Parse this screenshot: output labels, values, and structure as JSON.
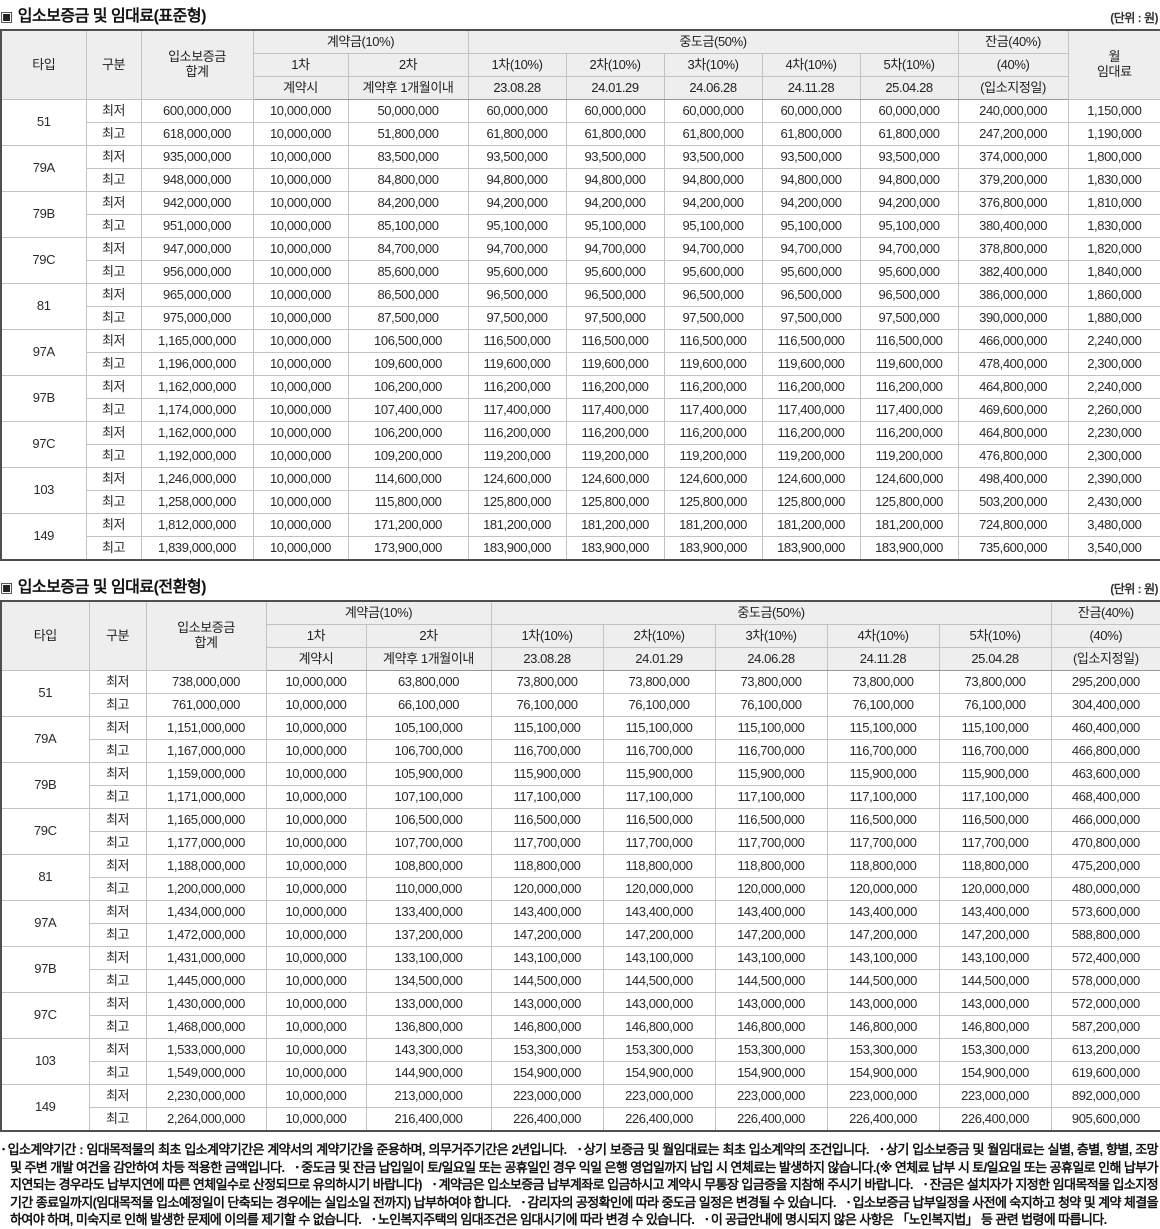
{
  "tables": [
    {
      "id": "standard",
      "bullet_icon": "▣",
      "title": "입소보증금 및 임대료(표준형)",
      "unit_label": "(단위 : 원)",
      "header": {
        "type": "타입",
        "category": "구분",
        "deposit_total_lines": [
          "입소보증금",
          "합계"
        ],
        "contract": {
          "group": "계약금(10%)",
          "cols": [
            {
              "top": "1차",
              "bottom": "계약시"
            },
            {
              "top": "2차",
              "bottom": "계약후 1개월이내"
            }
          ]
        },
        "interim": {
          "group": "중도금(50%)",
          "cols": [
            {
              "top": "1차(10%)",
              "bottom": "23.08.28"
            },
            {
              "top": "2차(10%)",
              "bottom": "24.01.29"
            },
            {
              "top": "3차(10%)",
              "bottom": "24.06.28"
            },
            {
              "top": "4차(10%)",
              "bottom": "24.11.28"
            },
            {
              "top": "5차(10%)",
              "bottom": "25.04.28"
            }
          ]
        },
        "balance_rows": [
          "잔금(40%)",
          "(40%)",
          "(입소지정일)"
        ],
        "monthly_rent_lines": [
          "월",
          "임대료"
        ]
      },
      "groups": [
        {
          "type": "51",
          "rows": [
            {
              "category": "최저",
              "deposit_total": "600,000,000",
              "contract1": "10,000,000",
              "contract2": "50,000,000",
              "interim_each": "60,000,000",
              "balance": "240,000,000",
              "monthly_rent": "1,150,000"
            },
            {
              "category": "최고",
              "deposit_total": "618,000,000",
              "contract1": "10,000,000",
              "contract2": "51,800,000",
              "interim_each": "61,800,000",
              "balance": "247,200,000",
              "monthly_rent": "1,190,000"
            }
          ]
        },
        {
          "type": "79A",
          "rows": [
            {
              "category": "최저",
              "deposit_total": "935,000,000",
              "contract1": "10,000,000",
              "contract2": "83,500,000",
              "interim_each": "93,500,000",
              "balance": "374,000,000",
              "monthly_rent": "1,800,000"
            },
            {
              "category": "최고",
              "deposit_total": "948,000,000",
              "contract1": "10,000,000",
              "contract2": "84,800,000",
              "interim_each": "94,800,000",
              "balance": "379,200,000",
              "monthly_rent": "1,830,000"
            }
          ]
        },
        {
          "type": "79B",
          "rows": [
            {
              "category": "최저",
              "deposit_total": "942,000,000",
              "contract1": "10,000,000",
              "contract2": "84,200,000",
              "interim_each": "94,200,000",
              "balance": "376,800,000",
              "monthly_rent": "1,810,000"
            },
            {
              "category": "최고",
              "deposit_total": "951,000,000",
              "contract1": "10,000,000",
              "contract2": "85,100,000",
              "interim_each": "95,100,000",
              "balance": "380,400,000",
              "monthly_rent": "1,830,000"
            }
          ]
        },
        {
          "type": "79C",
          "rows": [
            {
              "category": "최저",
              "deposit_total": "947,000,000",
              "contract1": "10,000,000",
              "contract2": "84,700,000",
              "interim_each": "94,700,000",
              "balance": "378,800,000",
              "monthly_rent": "1,820,000"
            },
            {
              "category": "최고",
              "deposit_total": "956,000,000",
              "contract1": "10,000,000",
              "contract2": "85,600,000",
              "interim_each": "95,600,000",
              "balance": "382,400,000",
              "monthly_rent": "1,840,000"
            }
          ]
        },
        {
          "type": "81",
          "rows": [
            {
              "category": "최저",
              "deposit_total": "965,000,000",
              "contract1": "10,000,000",
              "contract2": "86,500,000",
              "interim_each": "96,500,000",
              "balance": "386,000,000",
              "monthly_rent": "1,860,000"
            },
            {
              "category": "최고",
              "deposit_total": "975,000,000",
              "contract1": "10,000,000",
              "contract2": "87,500,000",
              "interim_each": "97,500,000",
              "balance": "390,000,000",
              "monthly_rent": "1,880,000"
            }
          ]
        },
        {
          "type": "97A",
          "rows": [
            {
              "category": "최저",
              "deposit_total": "1,165,000,000",
              "contract1": "10,000,000",
              "contract2": "106,500,000",
              "interim_each": "116,500,000",
              "balance": "466,000,000",
              "monthly_rent": "2,240,000"
            },
            {
              "category": "최고",
              "deposit_total": "1,196,000,000",
              "contract1": "10,000,000",
              "contract2": "109,600,000",
              "interim_each": "119,600,000",
              "balance": "478,400,000",
              "monthly_rent": "2,300,000"
            }
          ]
        },
        {
          "type": "97B",
          "rows": [
            {
              "category": "최저",
              "deposit_total": "1,162,000,000",
              "contract1": "10,000,000",
              "contract2": "106,200,000",
              "interim_each": "116,200,000",
              "balance": "464,800,000",
              "monthly_rent": "2,240,000"
            },
            {
              "category": "최고",
              "deposit_total": "1,174,000,000",
              "contract1": "10,000,000",
              "contract2": "107,400,000",
              "interim_each": "117,400,000",
              "balance": "469,600,000",
              "monthly_rent": "2,260,000"
            }
          ]
        },
        {
          "type": "97C",
          "rows": [
            {
              "category": "최저",
              "deposit_total": "1,162,000,000",
              "contract1": "10,000,000",
              "contract2": "106,200,000",
              "interim_each": "116,200,000",
              "balance": "464,800,000",
              "monthly_rent": "2,230,000"
            },
            {
              "category": "최고",
              "deposit_total": "1,192,000,000",
              "contract1": "10,000,000",
              "contract2": "109,200,000",
              "interim_each": "119,200,000",
              "balance": "476,800,000",
              "monthly_rent": "2,300,000"
            }
          ]
        },
        {
          "type": "103",
          "rows": [
            {
              "category": "최저",
              "deposit_total": "1,246,000,000",
              "contract1": "10,000,000",
              "contract2": "114,600,000",
              "interim_each": "124,600,000",
              "balance": "498,400,000",
              "monthly_rent": "2,390,000"
            },
            {
              "category": "최고",
              "deposit_total": "1,258,000,000",
              "contract1": "10,000,000",
              "contract2": "115,800,000",
              "interim_each": "125,800,000",
              "balance": "503,200,000",
              "monthly_rent": "2,430,000"
            }
          ]
        },
        {
          "type": "149",
          "rows": [
            {
              "category": "최저",
              "deposit_total": "1,812,000,000",
              "contract1": "10,000,000",
              "contract2": "171,200,000",
              "interim_each": "181,200,000",
              "balance": "724,800,000",
              "monthly_rent": "3,480,000"
            },
            {
              "category": "최고",
              "deposit_total": "1,839,000,000",
              "contract1": "10,000,000",
              "contract2": "173,900,000",
              "interim_each": "183,900,000",
              "balance": "735,600,000",
              "monthly_rent": "3,540,000"
            }
          ]
        }
      ]
    },
    {
      "id": "conversion",
      "bullet_icon": "▣",
      "title": "입소보증금 및 임대료(전환형)",
      "unit_label": "(단위 : 원)",
      "header": {
        "type": "타입",
        "category": "구분",
        "deposit_total_lines": [
          "입소보증금",
          "합계"
        ],
        "contract": {
          "group": "계약금(10%)",
          "cols": [
            {
              "top": "1차",
              "bottom": "계약시"
            },
            {
              "top": "2차",
              "bottom": "계약후 1개월이내"
            }
          ]
        },
        "interim": {
          "group": "중도금(50%)",
          "cols": [
            {
              "top": "1차(10%)",
              "bottom": "23.08.28"
            },
            {
              "top": "2차(10%)",
              "bottom": "24.01.29"
            },
            {
              "top": "3차(10%)",
              "bottom": "24.06.28"
            },
            {
              "top": "4차(10%)",
              "bottom": "24.11.28"
            },
            {
              "top": "5차(10%)",
              "bottom": "25.04.28"
            }
          ]
        },
        "balance_rows": [
          "잔금(40%)",
          "(40%)",
          "(입소지정일)"
        ]
      },
      "groups": [
        {
          "type": "51",
          "rows": [
            {
              "category": "최저",
              "deposit_total": "738,000,000",
              "contract1": "10,000,000",
              "contract2": "63,800,000",
              "interim_each": "73,800,000",
              "balance": "295,200,000"
            },
            {
              "category": "최고",
              "deposit_total": "761,000,000",
              "contract1": "10,000,000",
              "contract2": "66,100,000",
              "interim_each": "76,100,000",
              "balance": "304,400,000"
            }
          ]
        },
        {
          "type": "79A",
          "rows": [
            {
              "category": "최저",
              "deposit_total": "1,151,000,000",
              "contract1": "10,000,000",
              "contract2": "105,100,000",
              "interim_each": "115,100,000",
              "balance": "460,400,000"
            },
            {
              "category": "최고",
              "deposit_total": "1,167,000,000",
              "contract1": "10,000,000",
              "contract2": "106,700,000",
              "interim_each": "116,700,000",
              "balance": "466,800,000"
            }
          ]
        },
        {
          "type": "79B",
          "rows": [
            {
              "category": "최저",
              "deposit_total": "1,159,000,000",
              "contract1": "10,000,000",
              "contract2": "105,900,000",
              "interim_each": "115,900,000",
              "balance": "463,600,000"
            },
            {
              "category": "최고",
              "deposit_total": "1,171,000,000",
              "contract1": "10,000,000",
              "contract2": "107,100,000",
              "interim_each": "117,100,000",
              "balance": "468,400,000"
            }
          ]
        },
        {
          "type": "79C",
          "rows": [
            {
              "category": "최저",
              "deposit_total": "1,165,000,000",
              "contract1": "10,000,000",
              "contract2": "106,500,000",
              "interim_each": "116,500,000",
              "balance": "466,000,000"
            },
            {
              "category": "최고",
              "deposit_total": "1,177,000,000",
              "contract1": "10,000,000",
              "contract2": "107,700,000",
              "interim_each": "117,700,000",
              "balance": "470,800,000"
            }
          ]
        },
        {
          "type": "81",
          "rows": [
            {
              "category": "최저",
              "deposit_total": "1,188,000,000",
              "contract1": "10,000,000",
              "contract2": "108,800,000",
              "interim_each": "118,800,000",
              "balance": "475,200,000"
            },
            {
              "category": "최고",
              "deposit_total": "1,200,000,000",
              "contract1": "10,000,000",
              "contract2": "110,000,000",
              "interim_each": "120,000,000",
              "balance": "480,000,000"
            }
          ]
        },
        {
          "type": "97A",
          "rows": [
            {
              "category": "최저",
              "deposit_total": "1,434,000,000",
              "contract1": "10,000,000",
              "contract2": "133,400,000",
              "interim_each": "143,400,000",
              "balance": "573,600,000"
            },
            {
              "category": "최고",
              "deposit_total": "1,472,000,000",
              "contract1": "10,000,000",
              "contract2": "137,200,000",
              "interim_each": "147,200,000",
              "balance": "588,800,000"
            }
          ]
        },
        {
          "type": "97B",
          "rows": [
            {
              "category": "최저",
              "deposit_total": "1,431,000,000",
              "contract1": "10,000,000",
              "contract2": "133,100,000",
              "interim_each": "143,100,000",
              "balance": "572,400,000"
            },
            {
              "category": "최고",
              "deposit_total": "1,445,000,000",
              "contract1": "10,000,000",
              "contract2": "134,500,000",
              "interim_each": "144,500,000",
              "balance": "578,000,000"
            }
          ]
        },
        {
          "type": "97C",
          "rows": [
            {
              "category": "최저",
              "deposit_total": "1,430,000,000",
              "contract1": "10,000,000",
              "contract2": "133,000,000",
              "interim_each": "143,000,000",
              "balance": "572,000,000"
            },
            {
              "category": "최고",
              "deposit_total": "1,468,000,000",
              "contract1": "10,000,000",
              "contract2": "136,800,000",
              "interim_each": "146,800,000",
              "balance": "587,200,000"
            }
          ]
        },
        {
          "type": "103",
          "rows": [
            {
              "category": "최저",
              "deposit_total": "1,533,000,000",
              "contract1": "10,000,000",
              "contract2": "143,300,000",
              "interim_each": "153,300,000",
              "balance": "613,200,000"
            },
            {
              "category": "최고",
              "deposit_total": "1,549,000,000",
              "contract1": "10,000,000",
              "contract2": "144,900,000",
              "interim_each": "154,900,000",
              "balance": "619,600,000"
            }
          ]
        },
        {
          "type": "149",
          "rows": [
            {
              "category": "최저",
              "deposit_total": "2,230,000,000",
              "contract1": "10,000,000",
              "contract2": "213,000,000",
              "interim_each": "223,000,000",
              "balance": "892,000,000"
            },
            {
              "category": "최고",
              "deposit_total": "2,264,000,000",
              "contract1": "10,000,000",
              "contract2": "216,400,000",
              "interim_each": "226,400,000",
              "balance": "905,600,000"
            }
          ]
        }
      ]
    }
  ],
  "footnotes": {
    "bullet_icon": "▪",
    "items": [
      "입소계약기간 : 임대목적물의 최초 입소계약기간은 계약서의 계약기간을 준용하며, 의무거주기간은 2년입니다.",
      "상기 보증금 및 월임대료는 최초 입소계약의 조건입니다.",
      "상기 입소보증금 및 월임대료는 실별, 층별, 향별, 조망 및 주변 개발 여건을 감안하여 차등 적용한 금액입니다.",
      "중도금 및 잔금 납입일이 토/일요일 또는 공휴일인 경우 익일 은행 영업일까지 납입 시 연체료는 발생하지 않습니다.(※ 연체료 납부 시 토/일요일 또는 공휴일로 인해 납부가 지연되는 경우라도 납부지연에 따른 연체일수로 산정되므로 유의하시기 바랍니다)",
      "계약금은 입소보증금 납부계좌로 입금하시고 계약시 무통장 입금증을 지참해 주시기 바랍니다.",
      "잔금은 설치자가 지정한 임대목적물 입소지정기간 종료일까지(임대목적물 입소예정일이 단축되는 경우에는 실입소일 전까지) 납부하여야 합니다.",
      "감리자의 공정확인에 따라 중도금 일정은 변경될 수 있습니다.",
      "입소보증금 납부일정을 사전에 숙지하고 청약 및 계약 체결을 하여야 하며, 미숙지로 인해 발생한 문제에 이의를 제기할 수 없습니다.",
      "노인복지주택의 임대조건은 임대시기에 따라 변경 수 있습니다.",
      "이 공급안내에 명시되지 않은 사항은 「노인복지법」 등 관련 법령에 따릅니다."
    ]
  }
}
